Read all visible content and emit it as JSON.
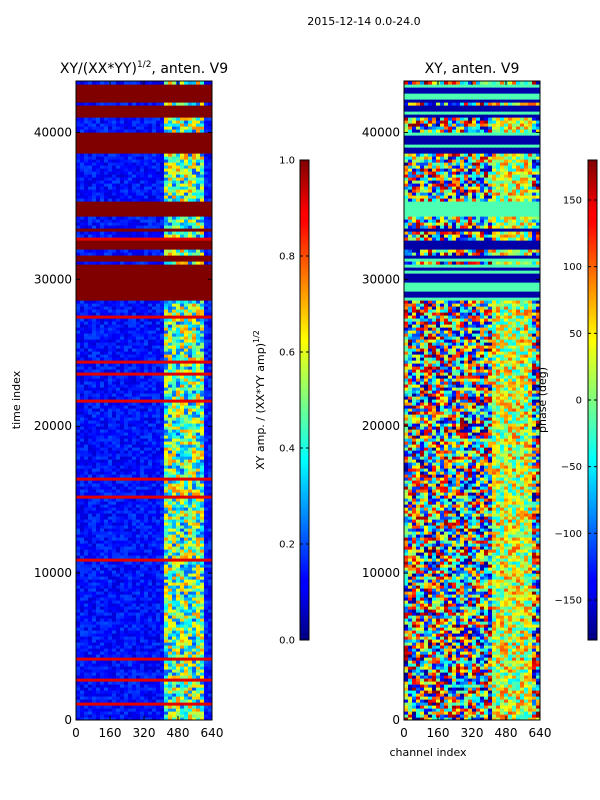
{
  "suptitle": "2015-12-14 0.0-24.0",
  "chart_data": [
    {
      "type": "heatmap",
      "title_main": "XY/(XX*YY)",
      "title_exp": "1/2",
      "title_rest": ", anten. V9",
      "xlabel": "",
      "ylabel": "time index",
      "xlim": [
        0,
        640
      ],
      "ylim": [
        0,
        43500
      ],
      "xticks": [
        0,
        160,
        320,
        480,
        640
      ],
      "yticks": [
        0,
        10000,
        20000,
        30000,
        40000
      ],
      "bad_bands": [
        [
          28600,
          31000
        ],
        [
          31300,
          31700
        ],
        [
          32000,
          32600
        ],
        [
          33200,
          33500
        ],
        [
          34300,
          35300
        ],
        [
          38600,
          40100
        ],
        [
          41100,
          41800
        ],
        [
          42000,
          43200
        ]
      ],
      "colorbar": {
        "label_main": "XY amp. / (XX*YY amp)",
        "label_exp": "1/2",
        "range": [
          0.0,
          1.0
        ],
        "ticks": [
          "0.0",
          "0.2",
          "0.4",
          "0.6",
          "0.8",
          "1.0"
        ],
        "tick_values": [
          0.0,
          0.2,
          0.4,
          0.6,
          0.8,
          1.0
        ]
      }
    },
    {
      "type": "heatmap",
      "title": "XY, anten. V9",
      "xlabel": "channel index",
      "ylabel": "",
      "xlim": [
        0,
        640
      ],
      "ylim": [
        0,
        43500
      ],
      "xticks": [
        0,
        160,
        320,
        480,
        640
      ],
      "yticks": [
        0,
        10000,
        20000,
        30000,
        40000
      ],
      "bad_bands": [
        [
          28600,
          31000
        ],
        [
          31300,
          31700
        ],
        [
          32000,
          32600
        ],
        [
          33200,
          33500
        ],
        [
          34300,
          35300
        ],
        [
          38600,
          40100
        ],
        [
          41100,
          41800
        ],
        [
          42000,
          43200
        ]
      ],
      "colorbar": {
        "label": "phase (deg)",
        "range": [
          -180,
          180
        ],
        "ticks": [
          "150",
          "100",
          "50",
          "0",
          "−50",
          "−100",
          "−150"
        ],
        "tick_values": [
          150,
          100,
          50,
          0,
          -50,
          -100,
          -150
        ]
      }
    }
  ]
}
